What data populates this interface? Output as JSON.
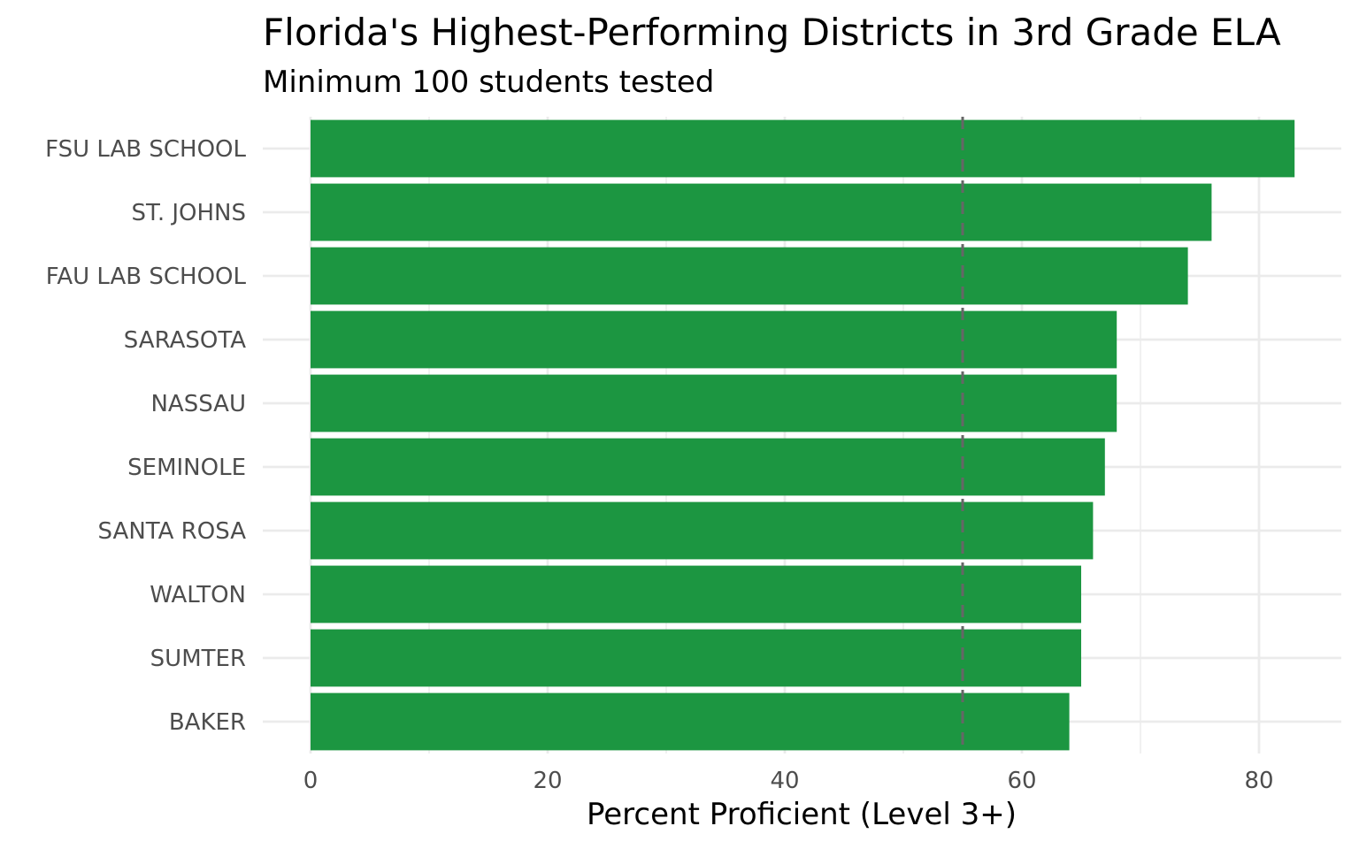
{
  "chart_data": {
    "type": "bar",
    "orientation": "horizontal",
    "title": "Florida's Highest-Performing Districts in 3rd Grade ELA",
    "subtitle": "Minimum 100 students tested",
    "xlabel": "Percent Proficient (Level 3+)",
    "ylabel": "",
    "categories": [
      "FSU LAB SCHOOL",
      "ST. JOHNS",
      "FAU LAB SCHOOL",
      "SARASOTA",
      "NASSAU",
      "SEMINOLE",
      "SANTA ROSA",
      "WALTON",
      "SUMTER",
      "BAKER"
    ],
    "values": [
      83,
      76,
      74,
      68,
      68,
      67,
      66,
      65,
      65,
      64
    ],
    "xlim": [
      0,
      85
    ],
    "x_ticks": [
      0,
      20,
      40,
      60,
      80
    ],
    "x_tick_labels": [
      "0",
      "20",
      "40",
      "60",
      "80"
    ],
    "reference_line": 55,
    "grid": true,
    "colors": {
      "bar": "#1c9641",
      "reference_line": "#666666",
      "grid": "#ebebeb"
    }
  }
}
